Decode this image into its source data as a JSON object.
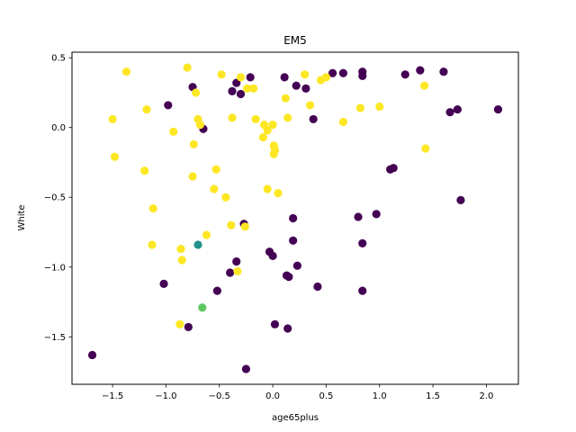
{
  "chart_data": {
    "type": "scatter",
    "title": "EM5",
    "xlabel": "age65plus",
    "ylabel": "White",
    "xlim": [
      -1.88,
      2.3
    ],
    "ylim": [
      -1.84,
      0.54
    ],
    "xticks": [
      -1.5,
      -1.0,
      -0.5,
      0.0,
      0.5,
      1.0,
      1.5,
      2.0
    ],
    "xtick_labels": [
      "−1.5",
      "−1.0",
      "−0.5",
      "0.0",
      "0.5",
      "1.0",
      "1.5",
      "2.0"
    ],
    "yticks": [
      -1.5,
      -1.0,
      -0.5,
      0.0,
      0.5
    ],
    "ytick_labels": [
      "−1.5",
      "−1.0",
      "−0.5",
      "0.0",
      "0.5"
    ],
    "grid": false,
    "legend": "none",
    "colormap": "viridis",
    "colors": {
      "cluster_0": "#440154",
      "cluster_1": "#21918c",
      "cluster_2": "#5ec962",
      "cluster_3": "#fde725"
    },
    "points": [
      {
        "x": -1.69,
        "y": -1.63,
        "c": 0
      },
      {
        "x": -1.02,
        "y": -1.12,
        "c": 0
      },
      {
        "x": -0.98,
        "y": 0.16,
        "c": 0
      },
      {
        "x": -0.79,
        "y": -1.43,
        "c": 0
      },
      {
        "x": -0.75,
        "y": 0.29,
        "c": 0
      },
      {
        "x": -0.65,
        "y": -0.01,
        "c": 0
      },
      {
        "x": -0.52,
        "y": -1.17,
        "c": 0
      },
      {
        "x": -0.4,
        "y": -1.04,
        "c": 0
      },
      {
        "x": -0.38,
        "y": 0.26,
        "c": 0
      },
      {
        "x": -0.34,
        "y": 0.32,
        "c": 0
      },
      {
        "x": -0.34,
        "y": -0.96,
        "c": 0
      },
      {
        "x": -0.3,
        "y": 0.24,
        "c": 0
      },
      {
        "x": -0.27,
        "y": -0.69,
        "c": 0
      },
      {
        "x": -0.25,
        "y": -1.73,
        "c": 0
      },
      {
        "x": -0.21,
        "y": 0.36,
        "c": 0
      },
      {
        "x": -0.03,
        "y": -0.89,
        "c": 0
      },
      {
        "x": 0.0,
        "y": -0.92,
        "c": 0
      },
      {
        "x": 0.02,
        "y": -1.41,
        "c": 0
      },
      {
        "x": 0.11,
        "y": 0.36,
        "c": 0
      },
      {
        "x": 0.13,
        "y": -1.06,
        "c": 0
      },
      {
        "x": 0.15,
        "y": -1.07,
        "c": 0
      },
      {
        "x": 0.14,
        "y": -1.44,
        "c": 0
      },
      {
        "x": 0.19,
        "y": -0.81,
        "c": 0
      },
      {
        "x": 0.19,
        "y": -0.65,
        "c": 0
      },
      {
        "x": 0.22,
        "y": 0.3,
        "c": 0
      },
      {
        "x": 0.23,
        "y": -0.99,
        "c": 0
      },
      {
        "x": 0.31,
        "y": 0.28,
        "c": 0
      },
      {
        "x": 0.38,
        "y": 0.06,
        "c": 0
      },
      {
        "x": 0.42,
        "y": -1.14,
        "c": 0
      },
      {
        "x": 0.56,
        "y": 0.39,
        "c": 0
      },
      {
        "x": 0.66,
        "y": 0.39,
        "c": 0
      },
      {
        "x": 0.8,
        "y": -0.64,
        "c": 0
      },
      {
        "x": 0.84,
        "y": 0.4,
        "c": 0
      },
      {
        "x": 0.84,
        "y": 0.37,
        "c": 0
      },
      {
        "x": 0.84,
        "y": -0.83,
        "c": 0
      },
      {
        "x": 0.84,
        "y": -1.17,
        "c": 0
      },
      {
        "x": 0.97,
        "y": -0.62,
        "c": 0
      },
      {
        "x": 1.1,
        "y": -0.3,
        "c": 0
      },
      {
        "x": 1.13,
        "y": -0.29,
        "c": 0
      },
      {
        "x": 1.24,
        "y": 0.38,
        "c": 0
      },
      {
        "x": 1.38,
        "y": 0.41,
        "c": 0
      },
      {
        "x": 1.6,
        "y": 0.4,
        "c": 0
      },
      {
        "x": 1.66,
        "y": 0.11,
        "c": 0
      },
      {
        "x": 1.73,
        "y": 0.13,
        "c": 0
      },
      {
        "x": 1.76,
        "y": -0.52,
        "c": 0
      },
      {
        "x": 2.11,
        "y": 0.13,
        "c": 0
      },
      {
        "x": -0.7,
        "y": -0.84,
        "c": 1
      },
      {
        "x": -0.66,
        "y": -1.29,
        "c": 2
      },
      {
        "x": -1.37,
        "y": 0.4,
        "c": 3
      },
      {
        "x": -1.5,
        "y": 0.06,
        "c": 3
      },
      {
        "x": -1.48,
        "y": -0.21,
        "c": 3
      },
      {
        "x": -1.18,
        "y": 0.13,
        "c": 3
      },
      {
        "x": -1.2,
        "y": -0.31,
        "c": 3
      },
      {
        "x": -1.12,
        "y": -0.58,
        "c": 3
      },
      {
        "x": -1.13,
        "y": -0.84,
        "c": 3
      },
      {
        "x": -0.93,
        "y": -0.03,
        "c": 3
      },
      {
        "x": -0.86,
        "y": -0.87,
        "c": 3
      },
      {
        "x": -0.85,
        "y": -0.95,
        "c": 3
      },
      {
        "x": -0.87,
        "y": -1.41,
        "c": 3
      },
      {
        "x": -0.8,
        "y": 0.43,
        "c": 3
      },
      {
        "x": -0.75,
        "y": -0.35,
        "c": 3
      },
      {
        "x": -0.74,
        "y": -0.12,
        "c": 3
      },
      {
        "x": -0.72,
        "y": 0.25,
        "c": 3
      },
      {
        "x": -0.7,
        "y": 0.06,
        "c": 3
      },
      {
        "x": -0.68,
        "y": 0.02,
        "c": 3
      },
      {
        "x": -0.62,
        "y": -0.77,
        "c": 3
      },
      {
        "x": -0.55,
        "y": -0.44,
        "c": 3
      },
      {
        "x": -0.53,
        "y": -0.3,
        "c": 3
      },
      {
        "x": -0.48,
        "y": 0.38,
        "c": 3
      },
      {
        "x": -0.44,
        "y": -0.5,
        "c": 3
      },
      {
        "x": -0.38,
        "y": 0.07,
        "c": 3
      },
      {
        "x": -0.39,
        "y": -0.7,
        "c": 3
      },
      {
        "x": -0.33,
        "y": -1.03,
        "c": 3
      },
      {
        "x": -0.3,
        "y": 0.36,
        "c": 3
      },
      {
        "x": -0.26,
        "y": -0.71,
        "c": 3
      },
      {
        "x": -0.24,
        "y": 0.28,
        "c": 3
      },
      {
        "x": -0.18,
        "y": 0.28,
        "c": 3
      },
      {
        "x": -0.16,
        "y": 0.06,
        "c": 3
      },
      {
        "x": -0.09,
        "y": -0.07,
        "c": 3
      },
      {
        "x": -0.08,
        "y": 0.02,
        "c": 3
      },
      {
        "x": -0.05,
        "y": -0.02,
        "c": 3
      },
      {
        "x": -0.05,
        "y": -0.44,
        "c": 3
      },
      {
        "x": 0.0,
        "y": 0.02,
        "c": 3
      },
      {
        "x": 0.01,
        "y": -0.13,
        "c": 3
      },
      {
        "x": 0.02,
        "y": -0.16,
        "c": 3
      },
      {
        "x": 0.01,
        "y": -0.19,
        "c": 3
      },
      {
        "x": 0.05,
        "y": -0.47,
        "c": 3
      },
      {
        "x": 0.12,
        "y": 0.21,
        "c": 3
      },
      {
        "x": 0.14,
        "y": 0.07,
        "c": 3
      },
      {
        "x": 0.3,
        "y": 0.38,
        "c": 3
      },
      {
        "x": 0.35,
        "y": 0.16,
        "c": 3
      },
      {
        "x": 0.45,
        "y": 0.34,
        "c": 3
      },
      {
        "x": 0.5,
        "y": 0.36,
        "c": 3
      },
      {
        "x": 0.66,
        "y": 0.04,
        "c": 3
      },
      {
        "x": 0.82,
        "y": 0.14,
        "c": 3
      },
      {
        "x": 1.0,
        "y": 0.15,
        "c": 3
      },
      {
        "x": 1.42,
        "y": 0.3,
        "c": 3
      },
      {
        "x": 1.43,
        "y": -0.15,
        "c": 3
      }
    ]
  }
}
